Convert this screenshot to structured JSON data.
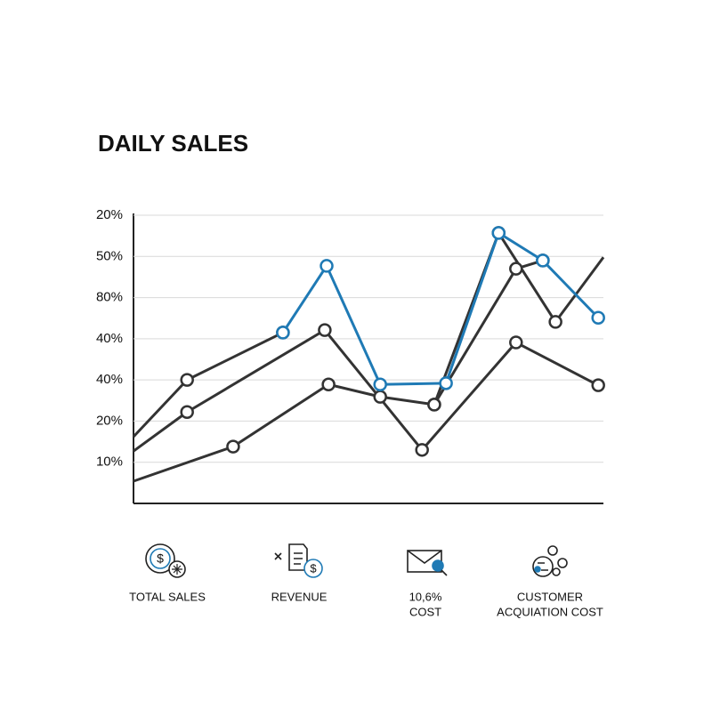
{
  "chart_data": {
    "type": "line",
    "title": "DAILY SALES",
    "xlim": [
      0,
      10
    ],
    "ylim": [
      0,
      7
    ],
    "yticks": [
      {
        "value": 1,
        "label": "10%"
      },
      {
        "value": 2,
        "label": "20%"
      },
      {
        "value": 3,
        "label": "40%"
      },
      {
        "value": 4,
        "label": "40%"
      },
      {
        "value": 5,
        "label": "80%"
      },
      {
        "value": 6,
        "label": "50%"
      },
      {
        "value": 7,
        "label": "20%"
      }
    ],
    "grid": true,
    "series": [
      {
        "color": "#333333",
        "x": [
          0,
          1.14,
          3.18
        ],
        "values": [
          1.62,
          3.0,
          4.15
        ]
      },
      {
        "color": "#333333",
        "x": [
          0,
          1.14,
          4.07,
          6.14,
          8.14,
          9.89
        ],
        "values": [
          1.27,
          2.22,
          4.21,
          1.3,
          3.91,
          2.87
        ]
      },
      {
        "color": "#333333",
        "x": [
          0,
          2.12,
          4.15,
          5.25,
          6.4,
          7.77,
          8.98,
          10
        ],
        "values": [
          0.54,
          1.38,
          2.89,
          2.59,
          2.4,
          6.57,
          4.41,
          5.98
        ]
      },
      {
        "color": "#333333",
        "x": [
          6.4,
          8.14,
          8.71
        ],
        "values": [
          2.4,
          5.7,
          5.9
        ]
      },
      {
        "color": "#1f7ab5",
        "x": [
          3.18,
          4.11,
          5.25,
          6.65,
          7.77,
          8.71,
          9.89
        ],
        "values": [
          4.15,
          5.77,
          2.89,
          2.92,
          6.57,
          5.9,
          4.51
        ]
      }
    ]
  },
  "footer": {
    "items": [
      {
        "lines": [
          "TOTAL SALES"
        ]
      },
      {
        "lines": [
          "REVENUE"
        ]
      },
      {
        "lines": [
          "10,6%",
          "COST"
        ]
      },
      {
        "lines": [
          "CUSTOMER",
          "ACQUIATION COST"
        ]
      }
    ]
  }
}
